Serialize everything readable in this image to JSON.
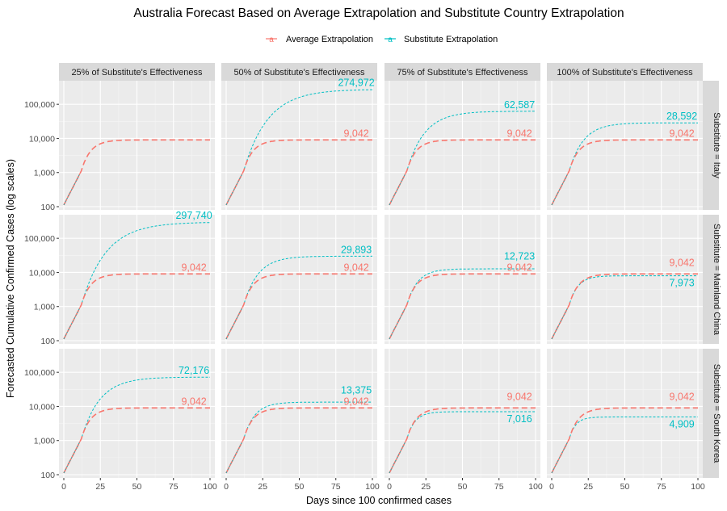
{
  "chart_data": {
    "type": "line",
    "title": "Australia Forecast Based on Average Extrapolation and Substitute Country Extrapolation",
    "xlabel": "Days since 100 confirmed cases",
    "ylabel": "Forecasted Cumulative Confirmed Cases (log scales)",
    "x_ticks": [
      "0",
      "25",
      "50",
      "75",
      "100"
    ],
    "y_ticks": [
      "100",
      "1,000",
      "10,000",
      "100,000"
    ],
    "xlim": [
      0,
      100
    ],
    "ylim": [
      100,
      300000
    ],
    "y_scale": "log",
    "grid": true,
    "legend_position": "top",
    "series_legend": [
      {
        "name": "Average Extrapolation",
        "color": "#F8766D",
        "key": "avg"
      },
      {
        "name": "Substitute Extrapolation",
        "color": "#00BFC4",
        "key": "sub"
      }
    ],
    "columns": [
      "25% of Substitute's Effectiveness",
      "50% of Substitute's Effectiveness",
      "75% of Substitute's Effectiveness",
      "100% of Substitute's Effectiveness"
    ],
    "rows": [
      "Substitute = Italy",
      "Substitute = Mainland China",
      "Substitute = South Korea"
    ],
    "average_final": 9042,
    "average_final_label": "9,042",
    "substitute_final": [
      [
        null,
        274972,
        62587,
        28592
      ],
      [
        297740,
        29893,
        12723,
        7973
      ],
      [
        72176,
        13375,
        7016,
        4909
      ]
    ],
    "substitute_final_labels": [
      [
        "",
        "274,972",
        "62,587",
        "28,592"
      ],
      [
        "297,740",
        "29,893",
        "12,723",
        "7,973"
      ],
      [
        "72,176",
        "13,375",
        "7,016",
        "4,909"
      ]
    ]
  }
}
